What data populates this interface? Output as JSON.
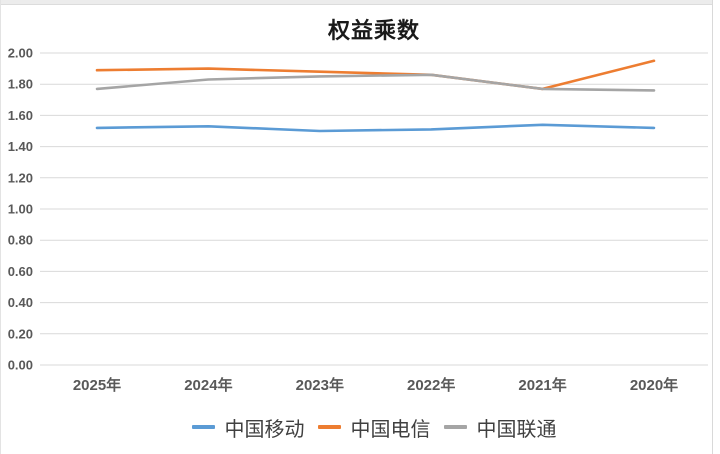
{
  "chart": {
    "title": "权益乘数"
  },
  "chart_data": {
    "type": "line",
    "title": "权益乘数",
    "categories": [
      "2025年",
      "2024年",
      "2023年",
      "2022年",
      "2021年",
      "2020年"
    ],
    "series": [
      {
        "name": "中国移动",
        "key": "china-mobile",
        "color": "#5B9BD5",
        "values": [
          1.52,
          1.53,
          1.5,
          1.51,
          1.54,
          1.52
        ]
      },
      {
        "name": "中国电信",
        "key": "china-telecom",
        "color": "#ED7D31",
        "values": [
          1.89,
          1.9,
          1.88,
          1.86,
          1.77,
          1.95
        ]
      },
      {
        "name": "中国联通",
        "key": "china-unicom",
        "color": "#A5A5A5",
        "values": [
          1.77,
          1.83,
          1.85,
          1.86,
          1.77,
          1.76
        ]
      }
    ],
    "xlabel": "",
    "ylabel": "",
    "ylim": [
      0.0,
      2.0
    ],
    "ytick_step": 0.2,
    "ytick_labels": [
      "0.00",
      "0.20",
      "0.40",
      "0.60",
      "0.80",
      "1.00",
      "1.20",
      "1.40",
      "1.60",
      "1.80",
      "2.00"
    ],
    "grid": "horizontal",
    "legend_position": "bottom",
    "style": {
      "gridline_color": "#D9D9D9",
      "axis_label_color": "#595959",
      "title_color": "#1A1A1A",
      "background_color": "#FFFFFF",
      "border_color": "#D9D9D9"
    }
  }
}
